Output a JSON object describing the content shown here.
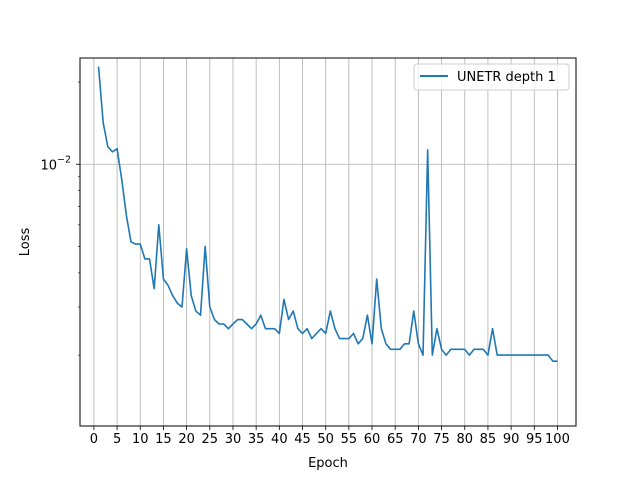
{
  "chart_data": {
    "type": "line",
    "title": "",
    "xlabel": "Epoch",
    "ylabel": "Loss",
    "xlim": [
      -3,
      104
    ],
    "ylim": [
      0.0011,
      0.0245
    ],
    "yscale": "log",
    "grid": "x-major, y-major",
    "legend_position": "top-right",
    "x_ticks": [
      "0",
      "5",
      "10",
      "15",
      "20",
      "25",
      "30",
      "35",
      "40",
      "45",
      "50",
      "55",
      "60",
      "65",
      "70",
      "75",
      "80",
      "85",
      "90",
      "95",
      "100"
    ],
    "y_ticks": [
      {
        "value": 0.01,
        "base": "10",
        "exponent": "−2"
      }
    ],
    "series": [
      {
        "name": "UNETR depth 1",
        "color": "#1f77b4",
        "x": [
          1,
          2,
          3,
          4,
          5,
          6,
          7,
          8,
          9,
          10,
          11,
          12,
          13,
          14,
          15,
          16,
          17,
          18,
          19,
          20,
          21,
          22,
          23,
          24,
          25,
          26,
          27,
          28,
          29,
          30,
          31,
          32,
          33,
          34,
          35,
          36,
          37,
          38,
          39,
          40,
          41,
          42,
          43,
          44,
          45,
          46,
          47,
          48,
          49,
          50,
          51,
          52,
          53,
          54,
          55,
          56,
          57,
          58,
          59,
          60,
          61,
          62,
          63,
          64,
          65,
          66,
          67,
          68,
          69,
          70,
          71,
          72,
          73,
          74,
          75,
          76,
          77,
          78,
          79,
          80,
          81,
          82,
          83,
          84,
          85,
          86,
          87,
          88,
          89,
          90,
          91,
          92,
          93,
          94,
          95,
          96,
          97,
          98,
          99,
          100
        ],
        "values": [
          0.0228,
          0.0142,
          0.0116,
          0.0111,
          0.0114,
          0.0088,
          0.0065,
          0.0052,
          0.0051,
          0.0051,
          0.0045,
          0.0045,
          0.0035,
          0.006,
          0.0038,
          0.0036,
          0.0033,
          0.0031,
          0.003,
          0.0049,
          0.0033,
          0.0029,
          0.0028,
          0.005,
          0.003,
          0.0027,
          0.0026,
          0.0026,
          0.0025,
          0.0026,
          0.0027,
          0.0027,
          0.0026,
          0.0025,
          0.0026,
          0.0028,
          0.0025,
          0.0025,
          0.0025,
          0.0024,
          0.0032,
          0.0027,
          0.0029,
          0.0025,
          0.0024,
          0.0025,
          0.0023,
          0.0024,
          0.0025,
          0.0024,
          0.0029,
          0.0025,
          0.0023,
          0.0023,
          0.0023,
          0.0024,
          0.0022,
          0.0023,
          0.0028,
          0.0022,
          0.0038,
          0.0025,
          0.0022,
          0.0021,
          0.0021,
          0.0021,
          0.0022,
          0.0022,
          0.0029,
          0.0022,
          0.002,
          0.0113,
          0.002,
          0.0025,
          0.0021,
          0.002,
          0.0021,
          0.0021,
          0.0021,
          0.0021,
          0.002,
          0.0021,
          0.0021,
          0.0021,
          0.002,
          0.0025,
          0.002,
          0.002,
          0.002,
          0.002,
          0.002,
          0.002,
          0.002,
          0.002,
          0.002,
          0.002,
          0.002,
          0.002,
          0.0019,
          0.0019
        ]
      }
    ]
  }
}
